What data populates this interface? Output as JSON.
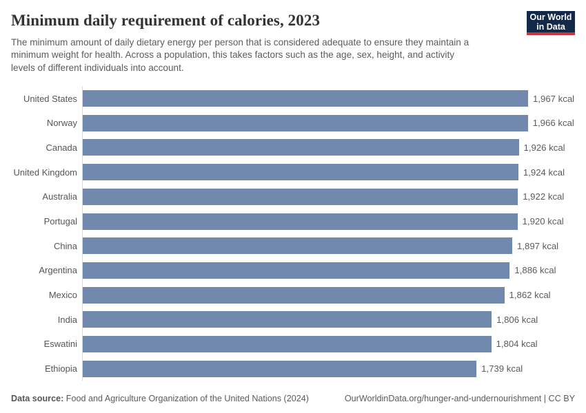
{
  "header": {
    "title": "Minimum daily requirement of calories, 2023",
    "subtitle_lines": [
      "The minimum amount of daily dietary energy per person that is considered adequate to ensure they maintain a",
      "minimum weight for health. Across a population, this takes factors such as the age, sex, height, and activity",
      "levels of different individuals into account."
    ],
    "logo": {
      "lines": [
        "Our World",
        "in Data"
      ],
      "bg_color": "#12294a",
      "accent_color": "#c9353d"
    }
  },
  "chart_data": {
    "type": "bar",
    "orientation": "horizontal",
    "title": "Minimum daily requirement of calories, 2023",
    "unit": "kcal",
    "categories": [
      "United States",
      "Norway",
      "Canada",
      "United Kingdom",
      "Australia",
      "Portugal",
      "China",
      "Argentina",
      "Mexico",
      "India",
      "Eswatini",
      "Ethiopia"
    ],
    "values": [
      1967,
      1966,
      1926,
      1924,
      1922,
      1920,
      1897,
      1886,
      1862,
      1806,
      1804,
      1739
    ],
    "value_labels": [
      "1,967 kcal",
      "1,966 kcal",
      "1,926 kcal",
      "1,924 kcal",
      "1,922 kcal",
      "1,920 kcal",
      "1,897 kcal",
      "1,886 kcal",
      "1,862 kcal",
      "1,806 kcal",
      "1,804 kcal",
      "1,739 kcal"
    ],
    "xlim": [
      0,
      1967
    ],
    "grid": false,
    "axis_labels_shown": false,
    "bar_color": "#7289ae",
    "axis_line_color": "#dadada"
  },
  "footer": {
    "datasource_label": "Data source:",
    "datasource_text": " Food and Agriculture Organization of the United Nations (2024)",
    "link": "OurWorldinData.org/hunger-and-undernourishment | CC BY"
  }
}
